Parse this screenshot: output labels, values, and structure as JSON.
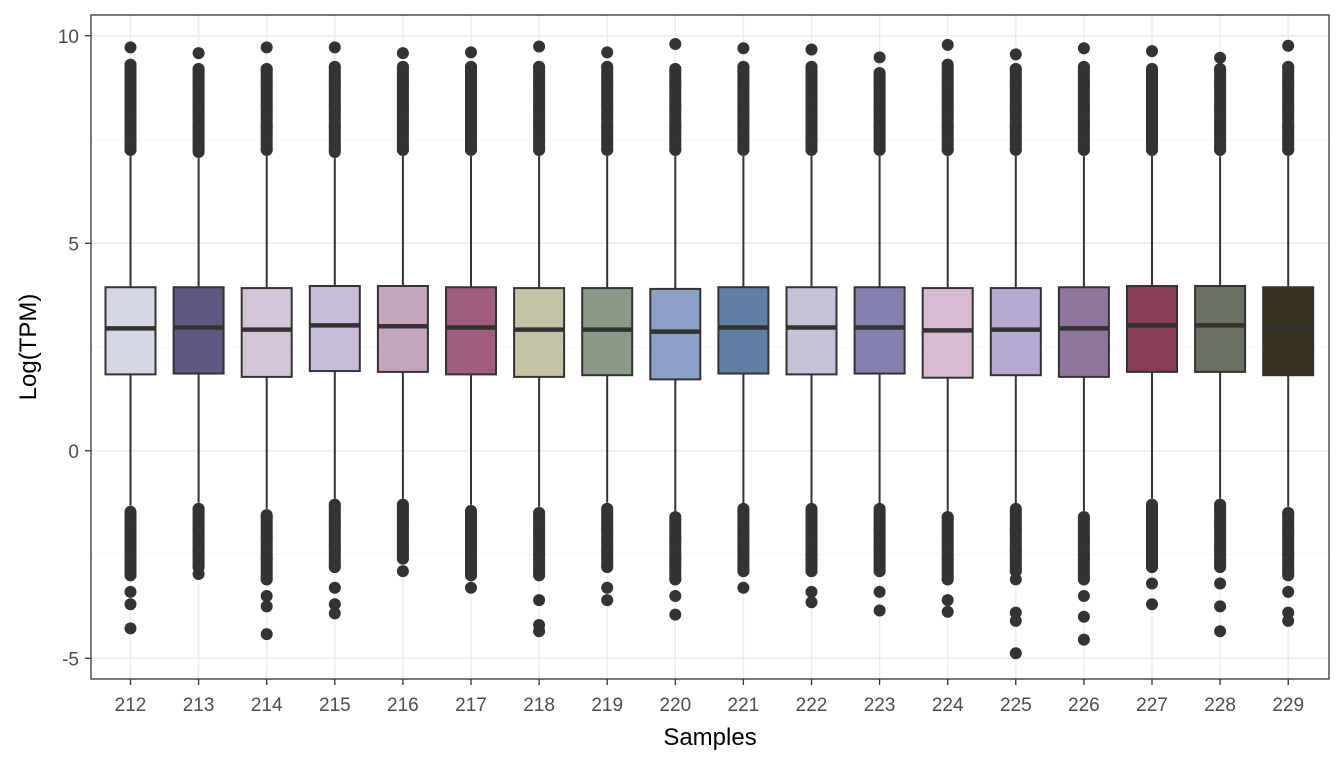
{
  "chart_data": {
    "type": "box",
    "xlabel": "Samples",
    "ylabel": "Log(TPM)",
    "ylim": [
      -5.5,
      10.5
    ],
    "yticks": [
      -5,
      0,
      5,
      10
    ],
    "grid": true,
    "theme": "bw",
    "categories": [
      "212",
      "213",
      "214",
      "215",
      "216",
      "217",
      "218",
      "219",
      "220",
      "221",
      "222",
      "223",
      "224",
      "225",
      "226",
      "227",
      "228",
      "229"
    ],
    "fill_colors": [
      "#D5D8E4",
      "#5F587F",
      "#D3C5D7",
      "#C8BDD9",
      "#C4A6BE",
      "#A05C7C",
      "#C4C3A5",
      "#8C9A88",
      "#8CA0C8",
      "#617EA5",
      "#C4C2D6",
      "#8581AE",
      "#D6BBD3",
      "#B5ABD0",
      "#8E769D",
      "#8A3E57",
      "#6A7163",
      "#37331F"
    ],
    "boxes": [
      {
        "q1": 1.84,
        "median": 2.95,
        "q3": 3.94,
        "whisker_low": -1.32,
        "whisker_high": 7.1,
        "outliers_high": [
          7.25,
          7.8,
          8.3,
          8.8,
          9.3,
          9.72
        ],
        "outliers_low": [
          -1.5,
          -2.0,
          -2.5,
          -3.0,
          -3.4,
          -3.7,
          -4.28
        ]
      },
      {
        "q1": 1.86,
        "median": 2.97,
        "q3": 3.94,
        "whisker_low": -1.25,
        "whisker_high": 7.05,
        "outliers_high": [
          7.25,
          7.8,
          8.3,
          8.8,
          9.2,
          9.58
        ],
        "outliers_low": [
          -1.4,
          -1.9,
          -2.4,
          -2.8,
          -2.97
        ]
      },
      {
        "q1": 1.78,
        "median": 2.92,
        "q3": 3.92,
        "whisker_low": -1.4,
        "whisker_high": 7.1,
        "outliers_high": [
          7.25,
          7.8,
          8.3,
          8.8,
          9.2,
          9.72
        ],
        "outliers_low": [
          -1.6,
          -2.1,
          -2.6,
          -3.1,
          -3.5,
          -3.75,
          -4.42
        ]
      },
      {
        "q1": 1.92,
        "median": 3.02,
        "q3": 3.97,
        "whisker_low": -1.15,
        "whisker_high": 7.05,
        "outliers_high": [
          7.25,
          7.8,
          8.3,
          8.8,
          9.25,
          9.72
        ],
        "outliers_low": [
          -1.3,
          -1.8,
          -2.3,
          -2.8,
          -3.3,
          -3.7,
          -3.92
        ]
      },
      {
        "q1": 1.9,
        "median": 3.0,
        "q3": 3.97,
        "whisker_low": -1.15,
        "whisker_high": 7.1,
        "outliers_high": [
          7.25,
          7.8,
          8.3,
          8.8,
          9.25,
          9.58
        ],
        "outliers_low": [
          -1.3,
          -1.8,
          -2.3,
          -2.6,
          -2.9
        ]
      },
      {
        "q1": 1.84,
        "median": 2.97,
        "q3": 3.94,
        "whisker_low": -1.3,
        "whisker_high": 7.1,
        "outliers_high": [
          7.25,
          7.8,
          8.3,
          8.8,
          9.25,
          9.6
        ],
        "outliers_low": [
          -1.5,
          -2.0,
          -2.5,
          -3.0,
          -3.3
        ]
      },
      {
        "q1": 1.78,
        "median": 2.92,
        "q3": 3.92,
        "whisker_low": -1.35,
        "whisker_high": 7.1,
        "outliers_high": [
          7.25,
          7.8,
          8.3,
          8.8,
          9.25,
          9.74
        ],
        "outliers_low": [
          -1.5,
          -2.0,
          -2.5,
          -3.0,
          -3.6,
          -4.2,
          -4.35
        ]
      },
      {
        "q1": 1.82,
        "median": 2.92,
        "q3": 3.92,
        "whisker_low": -1.25,
        "whisker_high": 7.1,
        "outliers_high": [
          7.25,
          7.8,
          8.3,
          8.8,
          9.25,
          9.6
        ],
        "outliers_low": [
          -1.4,
          -1.9,
          -2.4,
          -2.8,
          -3.3,
          -3.6
        ]
      },
      {
        "q1": 1.72,
        "median": 2.87,
        "q3": 3.9,
        "whisker_low": -1.5,
        "whisker_high": 7.1,
        "outliers_high": [
          7.25,
          7.8,
          8.3,
          8.8,
          9.2,
          9.8
        ],
        "outliers_low": [
          -1.6,
          -2.1,
          -2.6,
          -3.1,
          -3.5,
          -3.95
        ]
      },
      {
        "q1": 1.86,
        "median": 2.97,
        "q3": 3.94,
        "whisker_low": -1.3,
        "whisker_high": 7.1,
        "outliers_high": [
          7.25,
          7.8,
          8.3,
          8.8,
          9.25,
          9.7
        ],
        "outliers_low": [
          -1.4,
          -1.9,
          -2.4,
          -2.9,
          -3.3
        ]
      },
      {
        "q1": 1.84,
        "median": 2.97,
        "q3": 3.94,
        "whisker_low": -1.3,
        "whisker_high": 7.1,
        "outliers_high": [
          7.25,
          7.8,
          8.3,
          8.8,
          9.25,
          9.67
        ],
        "outliers_low": [
          -1.4,
          -1.9,
          -2.4,
          -2.9,
          -3.4,
          -3.65
        ]
      },
      {
        "q1": 1.86,
        "median": 2.97,
        "q3": 3.94,
        "whisker_low": -1.3,
        "whisker_high": 7.1,
        "outliers_high": [
          7.25,
          7.8,
          8.3,
          8.8,
          9.1,
          9.48
        ],
        "outliers_low": [
          -1.4,
          -1.9,
          -2.4,
          -2.9,
          -3.4,
          -3.85
        ]
      },
      {
        "q1": 1.76,
        "median": 2.9,
        "q3": 3.92,
        "whisker_low": -1.45,
        "whisker_high": 7.1,
        "outliers_high": [
          7.25,
          7.8,
          8.3,
          8.8,
          9.3,
          9.78
        ],
        "outliers_low": [
          -1.6,
          -2.1,
          -2.6,
          -3.1,
          -3.6,
          -3.88
        ]
      },
      {
        "q1": 1.82,
        "median": 2.92,
        "q3": 3.92,
        "whisker_low": -1.3,
        "whisker_high": 7.1,
        "outliers_high": [
          7.25,
          7.8,
          8.3,
          8.8,
          9.2,
          9.55
        ],
        "outliers_low": [
          -1.4,
          -1.9,
          -2.4,
          -2.9,
          -3.1,
          -3.9,
          -4.1,
          -4.88
        ]
      },
      {
        "q1": 1.78,
        "median": 2.95,
        "q3": 3.94,
        "whisker_low": -1.45,
        "whisker_high": 7.1,
        "outliers_high": [
          7.25,
          7.8,
          8.3,
          8.8,
          9.25,
          9.7
        ],
        "outliers_low": [
          -1.6,
          -2.1,
          -2.6,
          -3.1,
          -3.5,
          -4.0,
          -4.55
        ]
      },
      {
        "q1": 1.9,
        "median": 3.02,
        "q3": 3.97,
        "whisker_low": -1.15,
        "whisker_high": 7.1,
        "outliers_high": [
          7.25,
          7.8,
          8.3,
          8.8,
          9.2,
          9.63
        ],
        "outliers_low": [
          -1.3,
          -1.8,
          -2.3,
          -2.8,
          -3.2,
          -3.7
        ]
      },
      {
        "q1": 1.9,
        "median": 3.02,
        "q3": 3.97,
        "whisker_low": -1.15,
        "whisker_high": 7.1,
        "outliers_high": [
          7.25,
          7.8,
          8.3,
          8.8,
          9.2,
          9.47
        ],
        "outliers_low": [
          -1.3,
          -1.8,
          -2.3,
          -2.8,
          -3.2,
          -3.75,
          -4.35
        ]
      },
      {
        "q1": 1.82,
        "median": 2.95,
        "q3": 3.94,
        "whisker_low": -1.35,
        "whisker_high": 7.1,
        "outliers_high": [
          7.25,
          7.8,
          8.3,
          8.8,
          9.25,
          9.76
        ],
        "outliers_low": [
          -1.5,
          -2.0,
          -2.5,
          -3.0,
          -3.4,
          -3.9,
          -4.1
        ]
      }
    ]
  }
}
